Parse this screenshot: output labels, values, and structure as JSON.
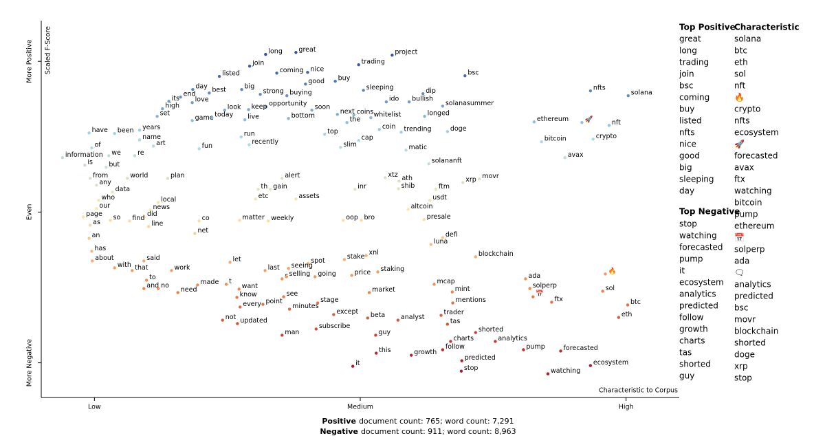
{
  "chart_data": {
    "type": "scatter",
    "x_label": "Characteristic to Corpus",
    "y_label": "Scaled F-Score",
    "terms": [
      "great",
      "long",
      "project",
      "trading",
      "bsc",
      "join",
      "coming",
      "nice",
      "listed",
      "buy",
      "good",
      "nfts",
      "solana",
      "day",
      "best",
      "big",
      "strong",
      "buying",
      "sleeping",
      "dip",
      "end",
      "its",
      "love",
      "ido",
      "bullish",
      "solanasummer",
      "high",
      "opportunity",
      "soon",
      "look",
      "keep",
      "set",
      "game",
      "today",
      "live",
      "bottom",
      "next",
      "coins",
      "the",
      "whitelist",
      "longed",
      "ethereum",
      "nft",
      "have",
      "been",
      "years",
      "coin",
      "trending",
      "doge",
      "name",
      "top",
      "run",
      "bitcoin",
      "crypto",
      "art",
      "recently",
      "cap",
      "fun",
      "of",
      "we",
      "re",
      "slim",
      "matic",
      "information",
      "avax",
      "is",
      "but",
      "solananft",
      "from",
      "world",
      "plan",
      "alert",
      "xtz",
      "movr",
      "xrp",
      "any",
      "ath",
      "shib",
      "th",
      "gain",
      "inr",
      "ftm",
      "data",
      "etc",
      "assets",
      "usdt",
      "who",
      "local",
      "our",
      "news",
      "altcoin",
      "page",
      "did",
      "so",
      "find",
      "co",
      "matter",
      "weekly",
      "oop",
      "bro",
      "presale",
      "as",
      "line",
      "net",
      "an",
      "defi",
      "luna",
      "has",
      "blockchain",
      "about",
      "with",
      "said",
      "let",
      "stake",
      "xnl",
      "that",
      "work",
      "spot",
      "seeing",
      "last",
      "staking",
      "ada",
      "to",
      "s",
      "selling",
      "going",
      "price",
      "made",
      "t",
      "sol",
      "and",
      "no",
      "need",
      "want",
      "solperp",
      "market",
      "mint",
      "mcap",
      "know",
      "see",
      "mentions",
      "ftx",
      "btc",
      "every",
      "point",
      "minutes",
      "stage",
      "not",
      "updated",
      "except",
      "beta",
      "analyst",
      "trader",
      "tas",
      "eth",
      "man",
      "subscribe",
      "shorted",
      "guy",
      "charts",
      "analytics",
      "follow",
      "pump",
      "forecasted",
      "this",
      "growth",
      "predicted",
      "ecosystem",
      "it",
      "stop",
      "watching",
      "🔥",
      "🚀",
      "📅"
    ],
    "x": [
      0.379,
      0.322,
      0.56,
      0.497,
      0.697,
      0.292,
      0.343,
      0.401,
      0.235,
      0.453,
      0.397,
      0.933,
      1.004,
      0.185,
      0.216,
      0.277,
      0.312,
      0.362,
      0.506,
      0.618,
      0.162,
      0.14,
      0.184,
      0.549,
      0.592,
      0.655,
      0.128,
      0.323,
      0.409,
      0.245,
      0.29,
      0.118,
      0.184,
      0.221,
      0.283,
      0.365,
      0.457,
      0.488,
      0.475,
      0.52,
      0.621,
      0.827,
      0.968,
      -0.01,
      0.038,
      0.085,
      0.536,
      0.577,
      0.664,
      0.085,
      0.433,
      0.276,
      0.841,
      0.938,
      0.111,
      0.291,
      0.497,
      0.197,
      -0.005,
      0.027,
      0.076,
      0.463,
      0.586,
      -0.06,
      0.885,
      -0.018,
      0.022,
      0.629,
      -0.008,
      0.062,
      0.138,
      0.353,
      0.547,
      0.724,
      0.693,
      0.004,
      0.573,
      0.572,
      0.308,
      0.331,
      0.49,
      0.642,
      0.034,
      0.303,
      0.379,
      0.631,
      0.008,
      0.12,
      0.004,
      0.105,
      0.59,
      -0.021,
      0.094,
      0.03,
      0.066,
      0.197,
      0.273,
      0.327,
      0.468,
      0.502,
      0.62,
      -0.008,
      0.102,
      0.189,
      -0.01,
      0.655,
      0.633,
      -0.005,
      0.717,
      -0.004,
      0.038,
      0.093,
      0.255,
      0.47,
      0.511,
      0.071,
      0.145,
      0.402,
      0.365,
      0.321,
      0.533,
      0.811,
      0.098,
      0.353,
      0.361,
      0.415,
      0.484,
      0.194,
      0.248,
      0.956,
      0.093,
      0.12,
      0.157,
      0.272,
      0.819,
      0.517,
      0.673,
      0.639,
      0.268,
      0.356,
      0.674,
      0.86,
      1.003,
      0.274,
      0.317,
      0.367,
      0.42,
      0.241,
      0.269,
      0.45,
      0.514,
      0.571,
      0.652,
      0.664,
      0.986,
      0.353,
      0.417,
      0.717,
      0.529,
      0.67,
      0.754,
      0.655,
      0.807,
      0.877,
      0.53,
      0.596,
      0.691,
      0.933,
      0.486,
      0.69,
      0.853,
      0.961,
      0.917,
      0.825
    ],
    "y": [
      1.059,
      1.046,
      1.041,
      0.977,
      0.904,
      0.968,
      0.922,
      0.927,
      0.9,
      0.868,
      0.849,
      0.804,
      0.772,
      0.813,
      0.79,
      0.813,
      0.781,
      0.772,
      0.808,
      0.785,
      0.763,
      0.735,
      0.726,
      0.731,
      0.731,
      0.703,
      0.685,
      0.699,
      0.676,
      0.676,
      0.68,
      0.635,
      0.607,
      0.626,
      0.612,
      0.621,
      0.648,
      0.644,
      0.594,
      0.626,
      0.635,
      0.598,
      0.575,
      0.525,
      0.521,
      0.543,
      0.548,
      0.53,
      0.534,
      0.479,
      0.516,
      0.498,
      0.466,
      0.484,
      0.438,
      0.447,
      0.475,
      0.42,
      0.425,
      0.374,
      0.374,
      0.429,
      0.411,
      0.361,
      0.361,
      0.311,
      0.297,
      0.32,
      0.224,
      0.224,
      0.224,
      0.224,
      0.228,
      0.219,
      0.196,
      0.178,
      0.205,
      0.155,
      0.151,
      0.151,
      0.151,
      0.151,
      0.132,
      0.087,
      0.087,
      0.078,
      0.078,
      0.064,
      0.023,
      0.014,
      0.018,
      -0.032,
      -0.032,
      -0.055,
      -0.059,
      -0.059,
      -0.055,
      -0.059,
      -0.055,
      -0.055,
      -0.05,
      -0.087,
      -0.096,
      -0.142,
      -0.174,
      -0.169,
      -0.215,
      -0.26,
      -0.297,
      -0.324,
      -0.37,
      -0.324,
      -0.333,
      -0.315,
      -0.288,
      -0.388,
      -0.388,
      -0.342,
      -0.374,
      -0.388,
      -0.397,
      -0.443,
      -0.452,
      -0.443,
      -0.429,
      -0.429,
      -0.42,
      -0.484,
      -0.479,
      -0.525,
      -0.507,
      -0.507,
      -0.534,
      -0.511,
      -0.507,
      -0.534,
      -0.53,
      -0.479,
      -0.566,
      -0.562,
      -0.603,
      -0.598,
      -0.616,
      -0.63,
      -0.612,
      -0.644,
      -0.603,
      -0.717,
      -0.74,
      -0.68,
      -0.703,
      -0.717,
      -0.685,
      -0.744,
      -0.699,
      -0.817,
      -0.776,
      -0.799,
      -0.817,
      -0.858,
      -0.858,
      -0.913,
      -0.913,
      -0.922,
      -0.936,
      -0.95,
      -0.986,
      -1.018,
      -1.023,
      -1.055,
      -1.073,
      -0.411,
      0.594,
      -0.562
    ],
    "xlim": [
      -0.1,
      1.1
    ],
    "ylim": [
      -1.23,
      1.27
    ],
    "xticks": [
      {
        "value": 0,
        "label": "Low"
      },
      {
        "value": 0.5,
        "label": "Medium"
      },
      {
        "value": 1,
        "label": "High"
      }
    ],
    "yticks": [
      {
        "value": 1,
        "label": "More Positive"
      },
      {
        "value": 0,
        "label": "Even"
      },
      {
        "value": -1,
        "label": "More Negative"
      }
    ],
    "color_scale": [
      "#b2182b",
      "#f4874a",
      "#fee8a8",
      "#a6d8e8",
      "#3451a8"
    ]
  },
  "top_positive": {
    "title": "Top Positive",
    "terms": [
      "great",
      "long",
      "trading",
      "join",
      "bsc",
      "coming",
      "buy",
      "listed",
      "nfts",
      "nice",
      "good",
      "big",
      "sleeping",
      "day"
    ]
  },
  "top_negative": {
    "title": "Top Negative",
    "terms": [
      "stop",
      "watching",
      "forecasted",
      "pump",
      "it",
      "ecosystem",
      "analytics",
      "predicted",
      "follow",
      "growth",
      "charts",
      "tas",
      "shorted",
      "guy"
    ]
  },
  "characteristic": {
    "title": "Characteristic",
    "terms": [
      "solana",
      "btc",
      "eth",
      "sol",
      "nft",
      "🔥",
      "crypto",
      "nfts",
      "ecosystem",
      "🚀",
      "forecasted",
      "avax",
      "ftx",
      "watching",
      "bitcoin",
      "pump",
      "ethereum",
      "📅",
      "solperp",
      "ada",
      "🗨",
      "analytics",
      "predicted",
      "bsc",
      "movr",
      "blockchain",
      "shorted",
      "doge",
      "xrp",
      "stop"
    ]
  },
  "footer": [
    {
      "label": "Positive",
      "text": "document count: 765; word count: 7,291"
    },
    {
      "label": "Negative",
      "text": "document count: 911; word count: 8,963"
    }
  ]
}
